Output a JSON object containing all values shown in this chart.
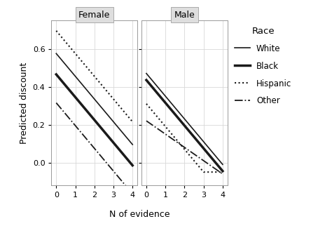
{
  "female": {
    "White": [
      0.575,
      0.455,
      0.335,
      0.215,
      0.095
    ],
    "Black": [
      0.465,
      0.345,
      0.225,
      0.105,
      -0.015
    ],
    "Hispanic": [
      0.695,
      0.575,
      0.455,
      0.335,
      0.215
    ],
    "Other": [
      0.315,
      0.195,
      0.075,
      -0.045,
      -0.165
    ]
  },
  "male": {
    "White": [
      0.47,
      0.35,
      0.23,
      0.11,
      -0.01
    ],
    "Black": [
      0.435,
      0.315,
      0.195,
      0.075,
      -0.045
    ],
    "Hispanic": [
      0.31,
      0.19,
      0.07,
      -0.05,
      -0.05
    ],
    "Other": [
      0.22,
      0.15,
      0.08,
      0.01,
      -0.06
    ]
  },
  "x": [
    0,
    1,
    2,
    3,
    4
  ],
  "line_styles": {
    "White": {
      "ls": "-",
      "lw": 1.2
    },
    "Black": {
      "ls": "-",
      "lw": 2.5
    },
    "Hispanic": {
      "ls": ":",
      "lw": 1.5
    },
    "Other": {
      "ls": "-.",
      "lw": 1.3
    }
  },
  "color": "#1a1a1a",
  "panel_labels": [
    "Female",
    "Male"
  ],
  "xlabel": "N of evidence",
  "ylabel": "Predicted discount",
  "ylim": [
    -0.12,
    0.75
  ],
  "yticks": [
    0.0,
    0.2,
    0.4,
    0.6
  ],
  "xticks": [
    0,
    1,
    2,
    3,
    4
  ],
  "legend_title": "Race",
  "legend_entries": [
    "White",
    "Black",
    "Hispanic",
    "Other"
  ],
  "bg_color": "#ffffff",
  "panel_bg": "#ffffff",
  "grid_color": "#d8d8d8",
  "header_bg": "#dedede"
}
